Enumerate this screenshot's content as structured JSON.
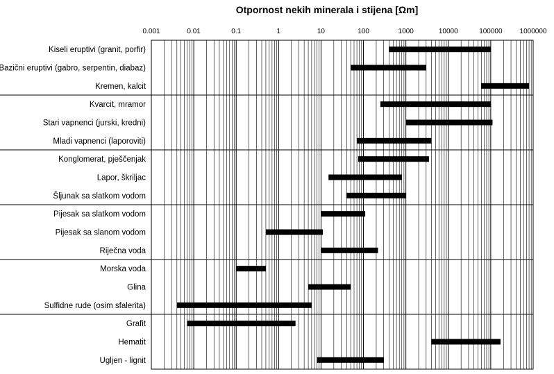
{
  "chart_data": {
    "type": "bar",
    "orientation": "horizontal-range",
    "title": "Otpornost nekih minerala i stijena [Ωm]",
    "x_scale": "log",
    "xlim": [
      0.001,
      1000000
    ],
    "x_ticks": [
      {
        "value": 0.001,
        "label": "0.001"
      },
      {
        "value": 0.01,
        "label": "0.01"
      },
      {
        "value": 0.1,
        "label": "0.1"
      },
      {
        "value": 1,
        "label": "1"
      },
      {
        "value": 10,
        "label": "10"
      },
      {
        "value": 100,
        "label": "100"
      },
      {
        "value": 1000,
        "label": "1000"
      },
      {
        "value": 10000,
        "label": "10000"
      },
      {
        "value": 100000,
        "label": "100000"
      },
      {
        "value": 1000000,
        "label": "1000000"
      }
    ],
    "x_axis_position": "top",
    "grid": true,
    "group_separators_after": [
      2,
      5,
      8,
      11,
      14
    ],
    "categories": [
      "Kiseli eruptivi (granit, porfir)",
      "Bazični eruptivi (gabro, serpentin, diabaz)",
      "Kremen, kalcit",
      "Kvarcit, mramor",
      "Stari vapnenci (jurski, kredni)",
      "Mladi vapnenci (laporoviti)",
      "Konglomerat, pješčenjak",
      "Lapor, škriljac",
      "Šljunak sa slatkom vodom",
      "Pijesak sa slatkom vodom",
      "Pijesak sa slanom vodom",
      "Riječna voda",
      "Morska voda",
      "Glina",
      "Sulfidne rude (osim sfalerita)",
      "Grafit",
      "Hematit",
      "Ugljen - lignit"
    ],
    "ranges": [
      [
        400,
        100000
      ],
      [
        50,
        3000
      ],
      [
        60000,
        800000
      ],
      [
        250,
        100000
      ],
      [
        1000,
        110000
      ],
      [
        70,
        4000
      ],
      [
        75,
        3500
      ],
      [
        15,
        800
      ],
      [
        40,
        1000
      ],
      [
        10,
        110
      ],
      [
        0.5,
        11
      ],
      [
        10,
        220
      ],
      [
        0.1,
        0.5
      ],
      [
        5,
        50
      ],
      [
        0.004,
        6
      ],
      [
        0.007,
        2.5
      ],
      [
        4000,
        170000
      ],
      [
        8,
        300
      ]
    ],
    "bar_color": "#000000"
  }
}
